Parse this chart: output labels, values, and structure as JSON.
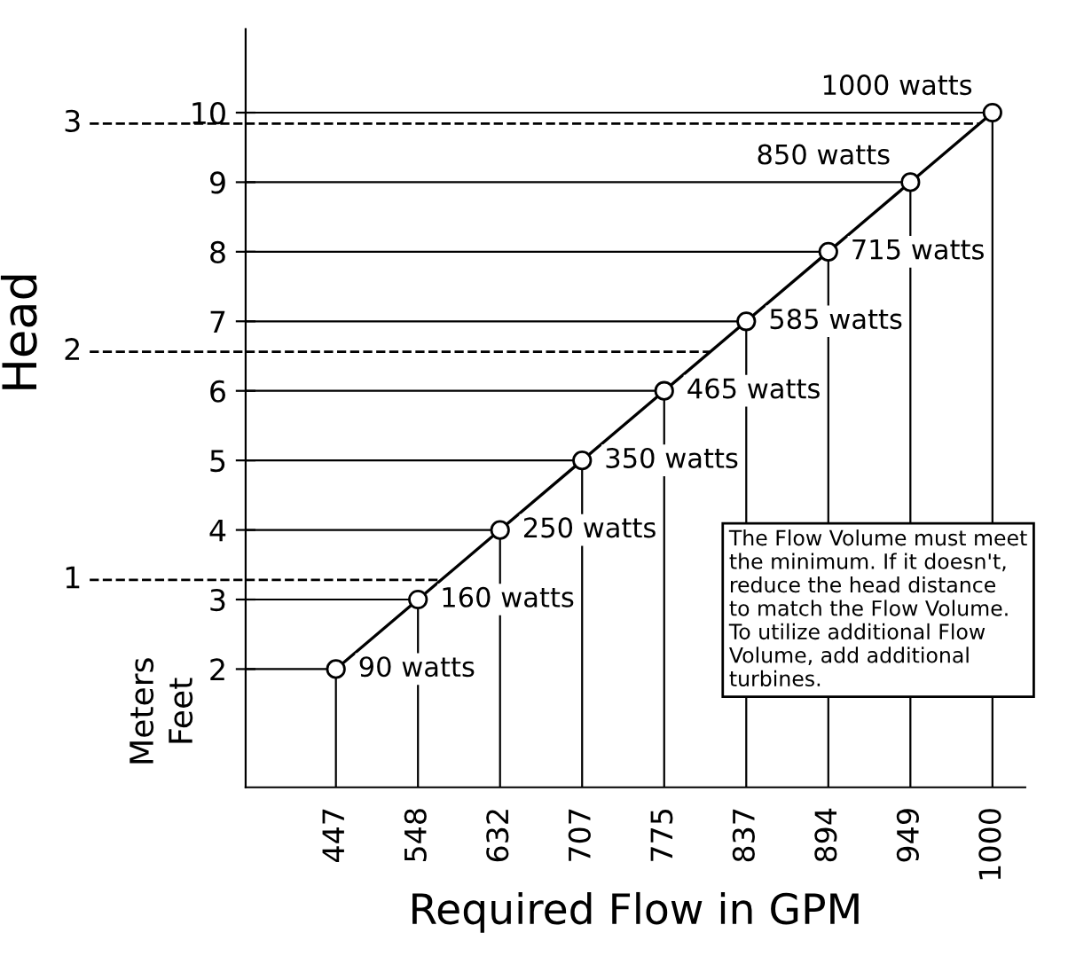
{
  "chart_data": {
    "type": "line",
    "xlabel": "Required Flow in GPM",
    "ylabel": "Feet",
    "y2label": "Meters",
    "legend": false,
    "categories": [
      "447",
      "548",
      "632",
      "707",
      "775",
      "837",
      "894",
      "949",
      "1000"
    ],
    "series": [
      {
        "color": "#000000",
        "marker": "circle",
        "values": [
          2,
          3,
          4,
          5,
          6,
          7,
          8,
          9,
          10
        ]
      }
    ],
    "ylim": [
      0.3,
      11.2
    ],
    "yticks": [
      2,
      3,
      4,
      5,
      6,
      7,
      8,
      9,
      10
    ],
    "y2lim": [
      0.0914,
      3.4138
    ],
    "ref_lines": [
      {
        "axis": "y2",
        "value": 1,
        "label": "1",
        "line_style": "dashed",
        "color": "#000000"
      },
      {
        "axis": "y2",
        "value": 2,
        "label": "2",
        "line_style": "dashed",
        "color": "#000000"
      },
      {
        "axis": "y2",
        "value": 3,
        "label": "3",
        "line_style": "dashed",
        "color": "#000000"
      }
    ],
    "grid": true,
    "annotations": [
      "Head",
      "The Flow Volume must meet\nthe minimum. If it doesn't,\nreduce the head distance\nto match the Flow Volume.\nTo utilize additional Flow\nVolume, add additional\nturbines.",
      {
        "text": "90 watts",
        "x": "447",
        "y": 2
      },
      {
        "text": "160 watts",
        "x": "548",
        "y": 3
      },
      {
        "text": "250 watts",
        "x": "632",
        "y": 4
      },
      {
        "text": "350 watts",
        "x": "707",
        "y": 5
      },
      {
        "text": "465 watts",
        "x": "775",
        "y": 6
      },
      {
        "text": "585 watts",
        "x": "837",
        "y": 7
      },
      {
        "text": "715 watts",
        "x": "894",
        "y": 8
      },
      {
        "text": "850 watts",
        "x": "949",
        "y": 9
      },
      {
        "text": "1000 watts",
        "x": "1000",
        "y": 10
      }
    ]
  }
}
